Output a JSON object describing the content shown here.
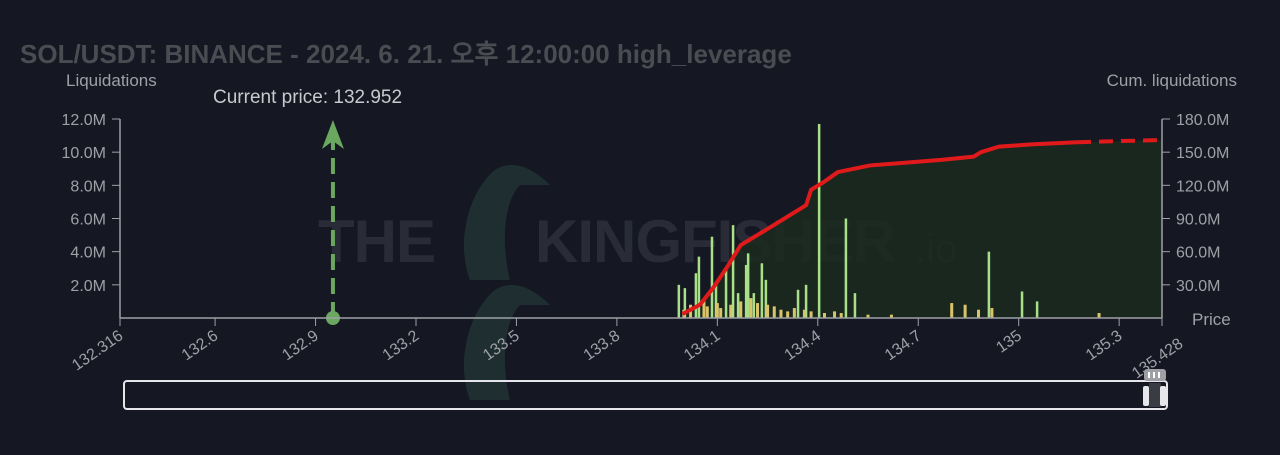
{
  "chart_data": {
    "type": "bar",
    "title": "SOL/USDT: BINANCE - 2024. 6. 21. 오후 12:00:00 high_leverage",
    "ylabel": "Liquidations",
    "y2label": "Cum. liquidations",
    "xlabel": "Price",
    "xlim": [
      132.316,
      135.428
    ],
    "ylim": [
      0,
      12000000
    ],
    "y2lim": [
      0,
      180000000
    ],
    "x_ticks": [
      "132.316",
      "132.6",
      "132.9",
      "133.2",
      "133.5",
      "133.8",
      "134.1",
      "134.4",
      "134.7",
      "135",
      "135.3",
      "135.428"
    ],
    "y_ticks": [
      "2.0M",
      "4.0M",
      "6.0M",
      "8.0M",
      "10.0M",
      "12.0M"
    ],
    "y2_ticks": [
      "30.0M",
      "60.0M",
      "90.0M",
      "120.0M",
      "150.0M",
      "180.0M"
    ],
    "current_price": {
      "label": "Current price: 132.952",
      "value": 132.952
    },
    "watermark": "THE KINGFISHER .io",
    "colors": {
      "long_bars": "#a8e08a",
      "short_bars": "#d9c46a",
      "cumulative": "#e01a1a",
      "current_price": "#6aa860",
      "fill": "#1b2a1f"
    },
    "series": [
      {
        "x": [
          133.985,
          134.003,
          134.036,
          134.045,
          134.084,
          134.096,
          134.126,
          134.147,
          134.162,
          134.186,
          134.192,
          134.209,
          134.233,
          134.245,
          134.341,
          134.365,
          134.404,
          134.484,
          134.511,
          134.911,
          135.01,
          135.055
        ],
        "values": [
          2.0,
          1.8,
          2.7,
          3.7,
          4.9,
          2.1,
          2.9,
          5.6,
          1.5,
          3.2,
          3.9,
          1.5,
          3.3,
          2.3,
          1.7,
          2.0,
          11.7,
          6.0,
          1.5,
          4.0,
          1.6,
          1.0
        ]
      },
      {
        "x": [
          134.0,
          134.02,
          134.06,
          134.07,
          134.1,
          134.11,
          134.14,
          134.17,
          134.2,
          134.22,
          134.25,
          134.27,
          134.29,
          134.31,
          134.33,
          134.36,
          134.38,
          134.42,
          134.45,
          134.47,
          134.55,
          134.62,
          134.8,
          134.84,
          134.88,
          134.92,
          135.24
        ],
        "values": [
          0.5,
          0.8,
          1.1,
          0.7,
          0.9,
          0.6,
          0.8,
          1.0,
          1.2,
          0.9,
          0.8,
          0.7,
          0.5,
          0.4,
          0.6,
          0.5,
          0.4,
          0.3,
          0.4,
          0.3,
          0.2,
          0.2,
          0.9,
          0.8,
          0.5,
          0.6,
          0.3
        ]
      },
      {
        "x": [
          133.996,
          134.048,
          134.087,
          134.129,
          134.17,
          134.236,
          134.365,
          134.38,
          134.418,
          134.46,
          134.556,
          134.768,
          134.866,
          134.887,
          134.941,
          135.037,
          135.174,
          135.425
        ],
        "values": [
          3.6,
          12,
          27,
          46,
          66,
          78,
          102,
          116,
          123,
          132,
          138,
          143,
          146,
          150,
          155,
          157,
          159,
          161
        ],
        "dashed_from": 135.174
      }
    ],
    "range_slider": {
      "start": 0,
      "end": 1
    }
  }
}
